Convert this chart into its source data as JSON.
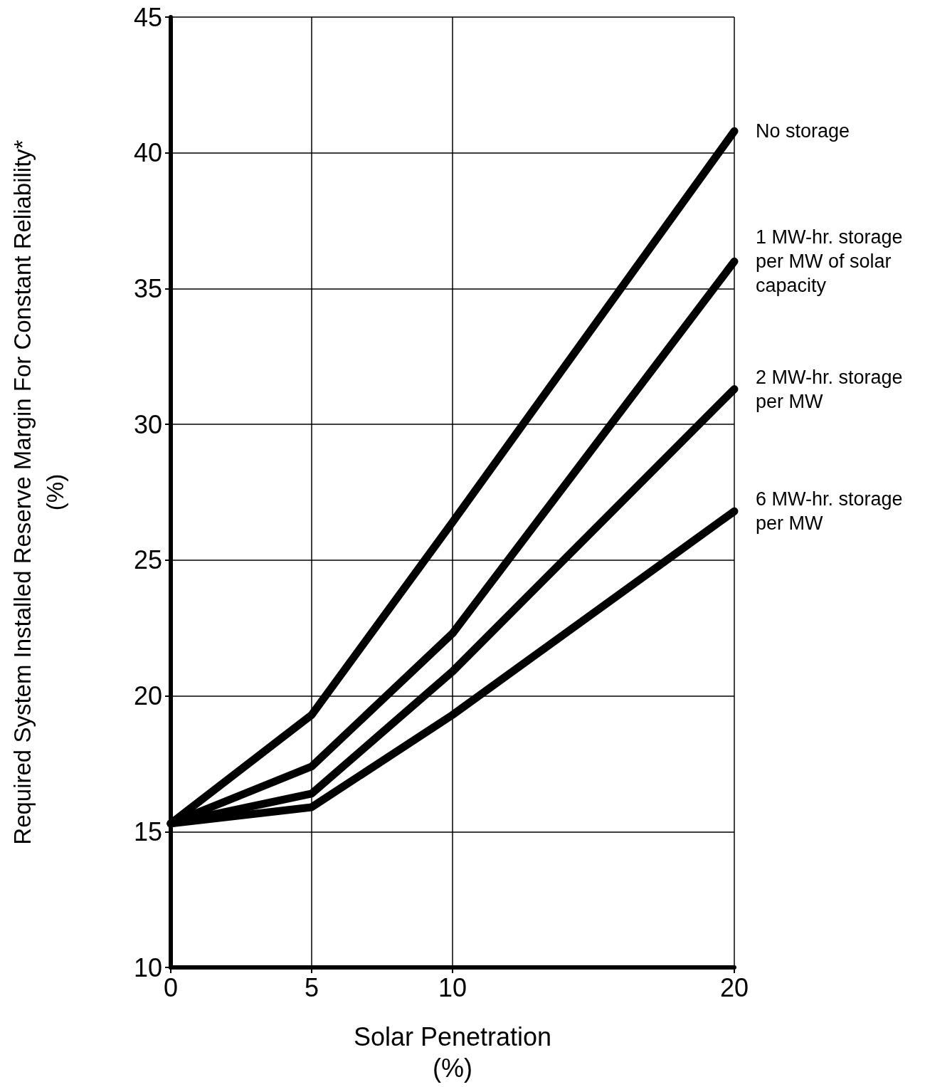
{
  "chart_data": {
    "type": "line",
    "xlabel": "Solar Penetration\n(%)",
    "ylabel": "Required System Installed Reserve Margin For Constant Reliability*\n(%)",
    "x": [
      0,
      5,
      10,
      20
    ],
    "series": [
      {
        "name": "No storage",
        "color": "#000000",
        "values": [
          15.3,
          19.3,
          26.4,
          40.8
        ]
      },
      {
        "name": "1 MW-hr. storage per MW of solar capacity",
        "color": "#000000",
        "values": [
          15.3,
          17.4,
          22.3,
          36.0
        ]
      },
      {
        "name": "2 MW-hr. storage per MW",
        "color": "#000000",
        "values": [
          15.3,
          16.4,
          20.9,
          31.3
        ]
      },
      {
        "name": "6 MW-hr. storage per MW",
        "color": "#000000",
        "values": [
          15.3,
          15.9,
          19.3,
          26.8
        ]
      }
    ],
    "xlim": [
      0,
      20
    ],
    "xticks": [
      0,
      5,
      10,
      20
    ],
    "ylim": [
      10,
      45
    ],
    "yticks": [
      10,
      15,
      20,
      25,
      30,
      35,
      40,
      45
    ],
    "grid": true,
    "legend": false,
    "marker": "none",
    "line_style": "solid"
  }
}
